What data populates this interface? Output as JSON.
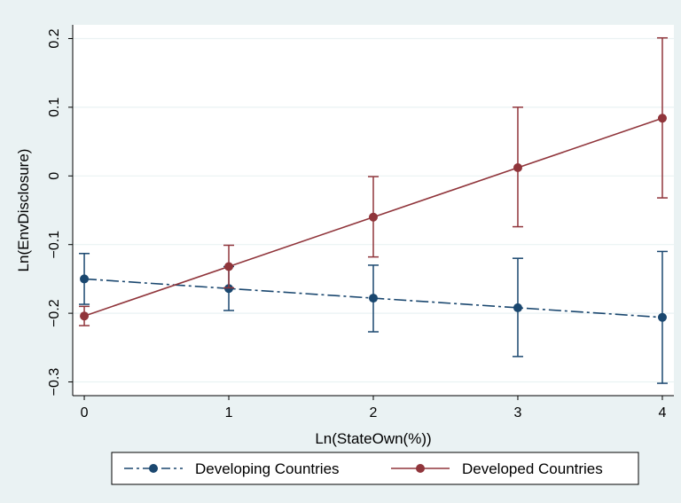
{
  "chart_data": {
    "type": "line",
    "xlabel": "Ln(StateOwn(%))",
    "ylabel": "Ln(EnvDisclosure)",
    "x_ticks": [
      0,
      1,
      2,
      3,
      4
    ],
    "y_ticks": [
      -0.3,
      -0.2,
      -0.1,
      0,
      0.1,
      0.2
    ],
    "y_tick_labels": [
      "−0.3",
      "−0.2",
      "−0.1",
      "0",
      "0.1",
      "0.2"
    ],
    "xlim": [
      -0.08,
      4.08
    ],
    "ylim": [
      -0.32,
      0.22
    ],
    "grid": "horizontal",
    "legend_position": "bottom",
    "series": [
      {
        "name": "Developing Countries",
        "color": "#1a476f",
        "line_style": "long-dash-dot",
        "x": [
          0,
          1,
          2,
          3,
          4
        ],
        "y": [
          -0.15,
          -0.164,
          -0.178,
          -0.192,
          -0.206
        ],
        "ci_low": [
          -0.187,
          -0.196,
          -0.227,
          -0.263,
          -0.302
        ],
        "ci_high": [
          -0.113,
          -0.132,
          -0.13,
          -0.12,
          -0.11
        ]
      },
      {
        "name": "Developed Countries",
        "color": "#90353b",
        "line_style": "solid",
        "x": [
          0,
          1,
          2,
          3,
          4
        ],
        "y": [
          -0.204,
          -0.132,
          -0.06,
          0.012,
          0.084
        ],
        "ci_low": [
          -0.218,
          -0.163,
          -0.118,
          -0.074,
          -0.032
        ],
        "ci_high": [
          -0.19,
          -0.101,
          -0.001,
          0.1,
          0.201
        ]
      }
    ]
  }
}
